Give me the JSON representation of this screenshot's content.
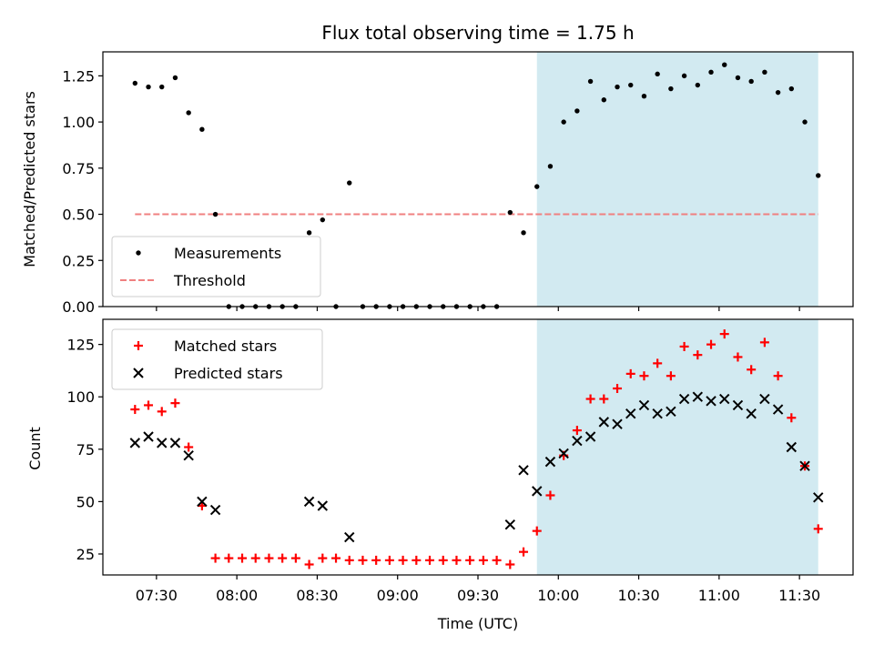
{
  "chart_data": [
    {
      "type": "scatter",
      "title": "Flux total observing time = 1.75 h",
      "xlabel": "",
      "ylabel": "Matched/Predicted stars",
      "ylim": [
        0,
        1.38
      ],
      "yticks": [
        0.0,
        0.25,
        0.5,
        0.75,
        1.0,
        1.25
      ],
      "ytick_labels": [
        "0.00",
        "0.25",
        "0.50",
        "0.75",
        "1.00",
        "1.25"
      ],
      "xlim": [
        "07:10",
        "11:50"
      ],
      "grid": false,
      "legend_position": "lower-left",
      "shaded_span": {
        "from": "09:52",
        "to": "11:37",
        "color": "#add8e6"
      },
      "threshold": {
        "name": "Threshold",
        "value": 0.5,
        "from": "07:22",
        "to": "11:37",
        "color": "#f08080"
      },
      "series": [
        {
          "name": "Measurements",
          "marker": "dot",
          "color": "#000000",
          "x": [
            "07:22",
            "07:27",
            "07:32",
            "07:37",
            "07:42",
            "07:47",
            "07:52",
            "07:57",
            "08:02",
            "08:07",
            "08:12",
            "08:17",
            "08:22",
            "08:27",
            "08:32",
            "08:37",
            "08:42",
            "08:47",
            "08:52",
            "08:57",
            "09:02",
            "09:07",
            "09:12",
            "09:17",
            "09:22",
            "09:27",
            "09:32",
            "09:37",
            "09:42",
            "09:47",
            "09:52",
            "09:57",
            "10:02",
            "10:07",
            "10:12",
            "10:17",
            "10:22",
            "10:27",
            "10:32",
            "10:37",
            "10:42",
            "10:47",
            "10:52",
            "10:57",
            "11:02",
            "11:07",
            "11:12",
            "11:17",
            "11:22",
            "11:27",
            "11:32",
            "11:37"
          ],
          "y": [
            1.21,
            1.19,
            1.19,
            1.24,
            1.05,
            0.96,
            0.5,
            0.0,
            0.0,
            0.0,
            0.0,
            0.0,
            0.0,
            0.4,
            0.47,
            0.0,
            0.67,
            0.0,
            0.0,
            0.0,
            0.0,
            0.0,
            0.0,
            0.0,
            0.0,
            0.0,
            0.0,
            0.0,
            0.51,
            0.4,
            0.65,
            0.76,
            1.0,
            1.06,
            1.22,
            1.12,
            1.19,
            1.2,
            1.14,
            1.26,
            1.18,
            1.25,
            1.2,
            1.27,
            1.31,
            1.24,
            1.22,
            1.27,
            1.16,
            1.18,
            1.0,
            0.71
          ]
        }
      ]
    },
    {
      "type": "scatter",
      "title": "",
      "xlabel": "Time (UTC)",
      "ylabel": "Count",
      "ylim": [
        15,
        137
      ],
      "yticks": [
        25,
        50,
        75,
        100,
        125
      ],
      "ytick_labels": [
        "25",
        "50",
        "75",
        "100",
        "125"
      ],
      "xlim": [
        "07:10",
        "11:50"
      ],
      "xticks": [
        "07:30",
        "08:00",
        "08:30",
        "09:00",
        "09:30",
        "10:00",
        "10:30",
        "11:00",
        "11:30"
      ],
      "xtick_labels": [
        "07:30",
        "08:00",
        "08:30",
        "09:00",
        "09:30",
        "10:00",
        "10:30",
        "11:00",
        "11:30"
      ],
      "grid": false,
      "legend_position": "upper-left",
      "shaded_span": {
        "from": "09:52",
        "to": "11:37",
        "color": "#add8e6"
      },
      "series": [
        {
          "name": "Matched stars",
          "marker": "plus",
          "color": "#ff0000",
          "x": [
            "07:22",
            "07:27",
            "07:32",
            "07:37",
            "07:42",
            "07:47",
            "07:52",
            "07:57",
            "08:02",
            "08:07",
            "08:12",
            "08:17",
            "08:22",
            "08:27",
            "08:32",
            "08:37",
            "08:42",
            "08:47",
            "08:52",
            "08:57",
            "09:02",
            "09:07",
            "09:12",
            "09:17",
            "09:22",
            "09:27",
            "09:32",
            "09:37",
            "09:42",
            "09:47",
            "09:52",
            "09:57",
            "10:02",
            "10:07",
            "10:12",
            "10:17",
            "10:22",
            "10:27",
            "10:32",
            "10:37",
            "10:42",
            "10:47",
            "10:52",
            "10:57",
            "11:02",
            "11:07",
            "11:12",
            "11:17",
            "11:22",
            "11:27",
            "11:32",
            "11:37"
          ],
          "y": [
            94,
            96,
            93,
            97,
            76,
            48,
            23,
            23,
            23,
            23,
            23,
            23,
            23,
            20,
            23,
            23,
            22,
            22,
            22,
            22,
            22,
            22,
            22,
            22,
            22,
            22,
            22,
            22,
            20,
            26,
            36,
            53,
            72,
            84,
            99,
            99,
            104,
            111,
            110,
            116,
            110,
            124,
            120,
            125,
            130,
            119,
            113,
            126,
            110,
            90,
            67,
            37
          ]
        },
        {
          "name": "Predicted stars",
          "marker": "x",
          "color": "#000000",
          "x": [
            "07:22",
            "07:27",
            "07:32",
            "07:37",
            "07:42",
            "07:47",
            "07:52",
            "08:27",
            "08:32",
            "08:42",
            "09:42",
            "09:47",
            "09:52",
            "09:57",
            "10:02",
            "10:07",
            "10:12",
            "10:17",
            "10:22",
            "10:27",
            "10:32",
            "10:37",
            "10:42",
            "10:47",
            "10:52",
            "10:57",
            "11:02",
            "11:07",
            "11:12",
            "11:17",
            "11:22",
            "11:27",
            "11:32",
            "11:37"
          ],
          "y": [
            78,
            81,
            78,
            78,
            72,
            50,
            46,
            50,
            48,
            33,
            39,
            65,
            55,
            69,
            73,
            79,
            81,
            88,
            87,
            92,
            96,
            92,
            93,
            99,
            100,
            98,
            99,
            96,
            92,
            99,
            94,
            76,
            67,
            52
          ]
        }
      ]
    }
  ]
}
